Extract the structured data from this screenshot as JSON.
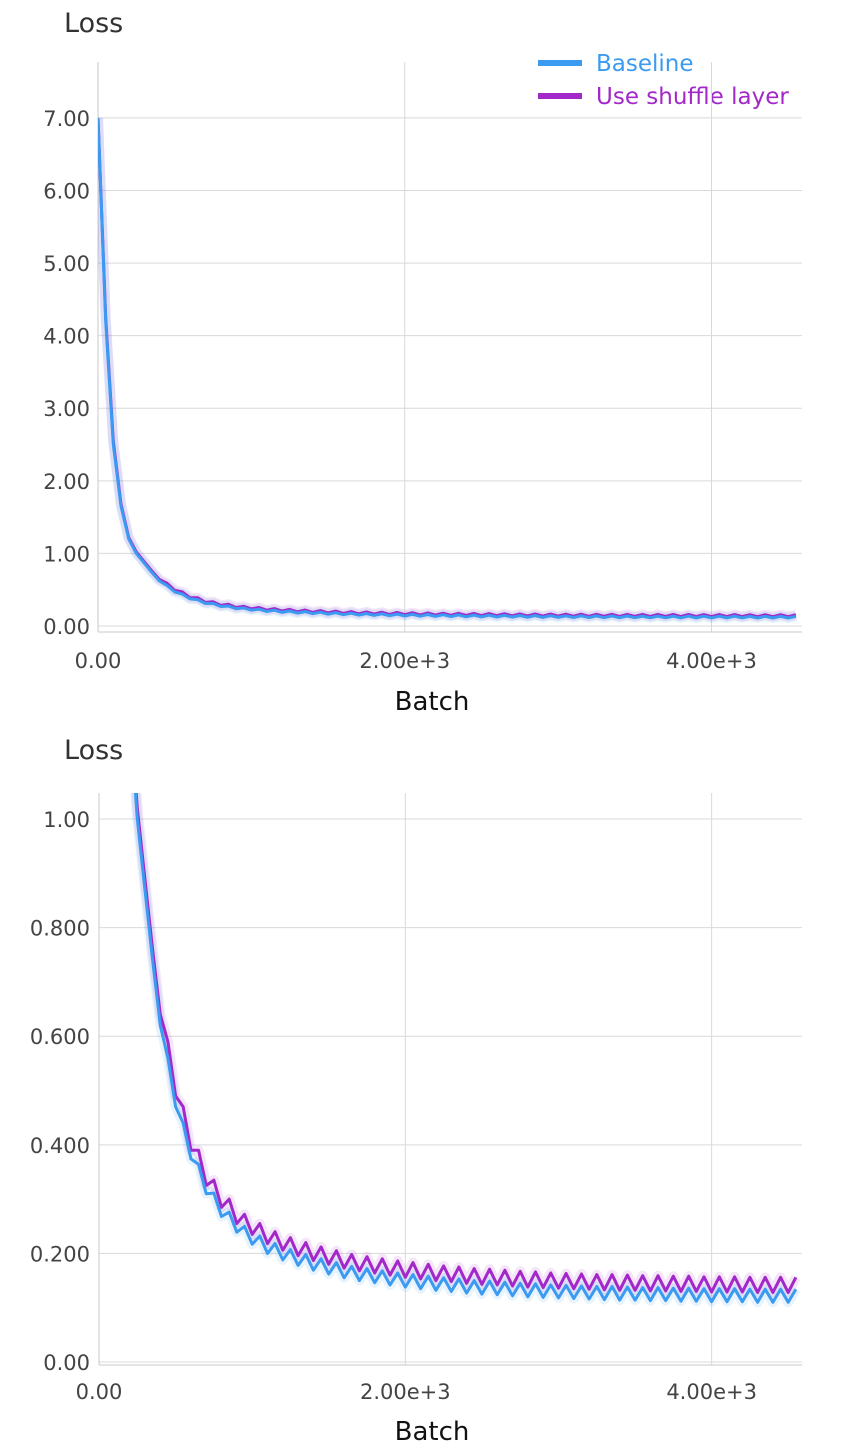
{
  "colors": {
    "baseline": "#3a9bf0",
    "shuffle": "#a328c9",
    "grid": "#d9d9d9",
    "axis": "#c8c8c8"
  },
  "chart_data": [
    {
      "type": "line",
      "title": "Loss",
      "xlabel": "Batch",
      "ylabel": "",
      "xlim": [
        0,
        4590
      ],
      "ylim": [
        0,
        7.77
      ],
      "grid": true,
      "legend": "top-right",
      "x_ticks": [
        {
          "v": 0,
          "label": "0.00"
        },
        {
          "v": 2000,
          "label": "2.00e+3"
        },
        {
          "v": 4000,
          "label": "4.00e+3"
        }
      ],
      "y_ticks": [
        {
          "v": 0,
          "label": "0.00"
        },
        {
          "v": 1,
          "label": "1.00"
        },
        {
          "v": 2,
          "label": "2.00"
        },
        {
          "v": 3,
          "label": "3.00"
        },
        {
          "v": 4,
          "label": "4.00"
        },
        {
          "v": 5,
          "label": "5.00"
        },
        {
          "v": 6,
          "label": "6.00"
        },
        {
          "v": 7,
          "label": "7.00"
        }
      ],
      "series_ref": "shared"
    },
    {
      "type": "line",
      "title": "Loss",
      "xlabel": "Batch",
      "ylabel": "",
      "xlim": [
        0,
        4590
      ],
      "ylim": [
        0,
        1.048
      ],
      "grid": true,
      "legend": "none",
      "x_ticks": [
        {
          "v": 0,
          "label": "0.00"
        },
        {
          "v": 2000,
          "label": "2.00e+3"
        },
        {
          "v": 4000,
          "label": "4.00e+3"
        }
      ],
      "y_ticks": [
        {
          "v": 0,
          "label": "0.00"
        },
        {
          "v": 0.2,
          "label": "0.200"
        },
        {
          "v": 0.4,
          "label": "0.400"
        },
        {
          "v": 0.6,
          "label": "0.600"
        },
        {
          "v": 0.8,
          "label": "0.800"
        },
        {
          "v": 1,
          "label": "1.00"
        }
      ],
      "series_ref": "shared"
    }
  ],
  "series": [
    {
      "name": "Baseline",
      "color": "#3a9bf0",
      "x_start": 0,
      "x_step": 50,
      "values": [
        7.0,
        4.2,
        2.5,
        1.65,
        1.2,
        1.0,
        0.87,
        0.74,
        0.62,
        0.56,
        0.47,
        0.44,
        0.374,
        0.364,
        0.31,
        0.311,
        0.268,
        0.276,
        0.239,
        0.25,
        0.217,
        0.232,
        0.2,
        0.218,
        0.188,
        0.207,
        0.178,
        0.198,
        0.169,
        0.19,
        0.162,
        0.183,
        0.155,
        0.176,
        0.15,
        0.172,
        0.146,
        0.168,
        0.142,
        0.164,
        0.138,
        0.161,
        0.135,
        0.158,
        0.132,
        0.155,
        0.13,
        0.153,
        0.127,
        0.15,
        0.125,
        0.149,
        0.124,
        0.147,
        0.122,
        0.145,
        0.12,
        0.144,
        0.119,
        0.142,
        0.118,
        0.141,
        0.117,
        0.14,
        0.116,
        0.139,
        0.115,
        0.139,
        0.114,
        0.138,
        0.114,
        0.137,
        0.113,
        0.137,
        0.113,
        0.136,
        0.112,
        0.136,
        0.112,
        0.135,
        0.111,
        0.135,
        0.111,
        0.135,
        0.111,
        0.134,
        0.11,
        0.134,
        0.11,
        0.134,
        0.11,
        0.134
      ]
    },
    {
      "name": "Use shuffle layer",
      "color": "#a328c9",
      "x_start": 0,
      "x_step": 50,
      "values": [
        7.0,
        4.25,
        2.55,
        1.68,
        1.22,
        1.02,
        0.89,
        0.76,
        0.64,
        0.59,
        0.49,
        0.47,
        0.39,
        0.39,
        0.325,
        0.335,
        0.285,
        0.3,
        0.255,
        0.272,
        0.235,
        0.255,
        0.218,
        0.24,
        0.206,
        0.229,
        0.196,
        0.22,
        0.187,
        0.212,
        0.18,
        0.205,
        0.173,
        0.198,
        0.168,
        0.194,
        0.164,
        0.19,
        0.16,
        0.186,
        0.156,
        0.183,
        0.153,
        0.18,
        0.15,
        0.177,
        0.148,
        0.175,
        0.145,
        0.172,
        0.143,
        0.171,
        0.142,
        0.169,
        0.14,
        0.167,
        0.138,
        0.166,
        0.137,
        0.164,
        0.136,
        0.163,
        0.135,
        0.162,
        0.134,
        0.161,
        0.133,
        0.161,
        0.132,
        0.16,
        0.132,
        0.159,
        0.131,
        0.159,
        0.131,
        0.158,
        0.13,
        0.158,
        0.13,
        0.157,
        0.129,
        0.157,
        0.129,
        0.157,
        0.129,
        0.156,
        0.128,
        0.156,
        0.128,
        0.156,
        0.128,
        0.156
      ]
    }
  ]
}
